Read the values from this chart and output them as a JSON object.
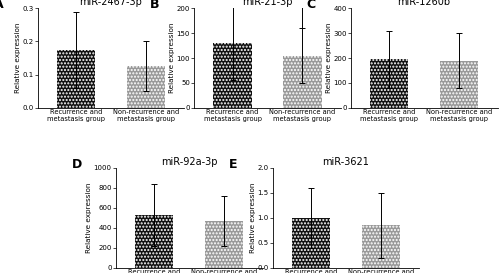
{
  "panels": [
    {
      "label": "A",
      "title": "miR-2467-3p",
      "bar1": 0.175,
      "bar2": 0.125,
      "err1": 0.115,
      "err2": 0.075,
      "ylim": [
        0.0,
        0.3
      ],
      "yticks": [
        0.0,
        0.1,
        0.2,
        0.3
      ],
      "sig": false,
      "sig_text": ""
    },
    {
      "label": "B",
      "title": "miR-21-3p",
      "bar1": 130,
      "bar2": 105,
      "err1": 75,
      "err2": 55,
      "ylim": [
        0,
        200
      ],
      "yticks": [
        0,
        50,
        100,
        150,
        200
      ],
      "sig": true,
      "sig_text": "*"
    },
    {
      "label": "C",
      "title": "miR-1260b",
      "bar1": 195,
      "bar2": 190,
      "err1": 115,
      "err2": 110,
      "ylim": [
        0,
        400
      ],
      "yticks": [
        0,
        100,
        200,
        300,
        400
      ],
      "sig": false,
      "sig_text": ""
    },
    {
      "label": "D",
      "title": "miR-92a-3p",
      "bar1": 530,
      "bar2": 465,
      "err1": 310,
      "err2": 250,
      "ylim": [
        0,
        1000
      ],
      "yticks": [
        0,
        200,
        400,
        600,
        800,
        1000
      ],
      "sig": false,
      "sig_text": ""
    },
    {
      "label": "E",
      "title": "miR-3621",
      "bar1": 1.0,
      "bar2": 0.85,
      "err1": 0.6,
      "err2": 0.65,
      "ylim": [
        0.0,
        2.0
      ],
      "yticks": [
        0.0,
        0.5,
        1.0,
        1.5,
        2.0
      ],
      "sig": false,
      "sig_text": ""
    }
  ],
  "cat1": "Recurrence and\nmetastasis group",
  "cat2": "Non-recurrence and\nmetastasis group",
  "bar_color1": "#111111",
  "bar_color2": "#999999",
  "bar_width": 0.55,
  "figsize": [
    5.0,
    2.73
  ],
  "dpi": 100,
  "label_fontsize": 9,
  "title_fontsize": 7,
  "tick_fontsize": 5,
  "xticklabel_fontsize": 4.8,
  "ylabel_fontsize": 5.2,
  "ylabel": "Relative expression"
}
